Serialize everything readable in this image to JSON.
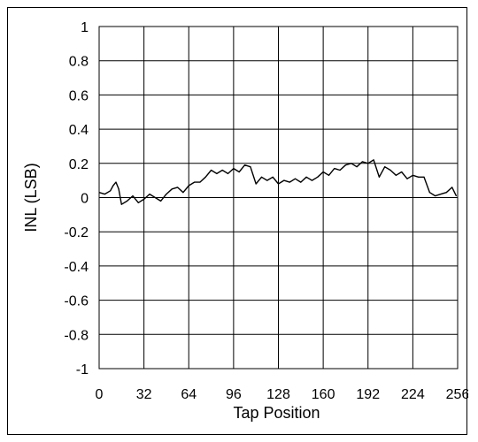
{
  "chart_data": {
    "type": "line",
    "xlabel": "Tap Position",
    "ylabel": "INL (LSB)",
    "xlim": [
      0,
      256
    ],
    "ylim": [
      -1,
      1
    ],
    "grid": true,
    "x_ticks": [
      0,
      32,
      64,
      96,
      128,
      160,
      192,
      224,
      256
    ],
    "x_tick_labels": [
      "0",
      "32",
      "64",
      "96",
      "128",
      "160",
      "192",
      "224",
      "256"
    ],
    "y_ticks": [
      1,
      0.8,
      0.6,
      0.4,
      0.2,
      0,
      -0.2,
      -0.4,
      -0.6,
      -0.8,
      -1
    ],
    "y_tick_labels": [
      "1",
      "0.8",
      "0.6",
      "0.4",
      "0.2",
      "0",
      "-0.2",
      "-0.4",
      "-0.6",
      "-0.8",
      "-1"
    ],
    "series": [
      {
        "color": "#000000",
        "points": [
          [
            0,
            0.03
          ],
          [
            4,
            0.02
          ],
          [
            8,
            0.04
          ],
          [
            10,
            0.07
          ],
          [
            12,
            0.09
          ],
          [
            14,
            0.05
          ],
          [
            16,
            -0.04
          ],
          [
            20,
            -0.02
          ],
          [
            24,
            0.01
          ],
          [
            28,
            -0.03
          ],
          [
            32,
            -0.01
          ],
          [
            36,
            0.02
          ],
          [
            40,
            0.0
          ],
          [
            44,
            -0.02
          ],
          [
            48,
            0.02
          ],
          [
            52,
            0.05
          ],
          [
            56,
            0.06
          ],
          [
            60,
            0.03
          ],
          [
            64,
            0.07
          ],
          [
            68,
            0.09
          ],
          [
            72,
            0.09
          ],
          [
            76,
            0.12
          ],
          [
            80,
            0.16
          ],
          [
            84,
            0.14
          ],
          [
            88,
            0.16
          ],
          [
            92,
            0.14
          ],
          [
            96,
            0.17
          ],
          [
            100,
            0.15
          ],
          [
            104,
            0.19
          ],
          [
            108,
            0.18
          ],
          [
            112,
            0.08
          ],
          [
            116,
            0.12
          ],
          [
            120,
            0.1
          ],
          [
            124,
            0.12
          ],
          [
            128,
            0.08
          ],
          [
            132,
            0.1
          ],
          [
            136,
            0.09
          ],
          [
            140,
            0.11
          ],
          [
            144,
            0.09
          ],
          [
            148,
            0.12
          ],
          [
            152,
            0.1
          ],
          [
            156,
            0.12
          ],
          [
            160,
            0.15
          ],
          [
            164,
            0.13
          ],
          [
            168,
            0.17
          ],
          [
            172,
            0.16
          ],
          [
            176,
            0.19
          ],
          [
            180,
            0.2
          ],
          [
            184,
            0.18
          ],
          [
            188,
            0.21
          ],
          [
            192,
            0.2
          ],
          [
            196,
            0.22
          ],
          [
            200,
            0.12
          ],
          [
            204,
            0.18
          ],
          [
            208,
            0.16
          ],
          [
            212,
            0.13
          ],
          [
            216,
            0.15
          ],
          [
            220,
            0.11
          ],
          [
            224,
            0.13
          ],
          [
            228,
            0.12
          ],
          [
            232,
            0.12
          ],
          [
            236,
            0.03
          ],
          [
            240,
            0.01
          ],
          [
            244,
            0.02
          ],
          [
            248,
            0.03
          ],
          [
            252,
            0.06
          ],
          [
            255,
            0.01
          ]
        ]
      }
    ]
  }
}
